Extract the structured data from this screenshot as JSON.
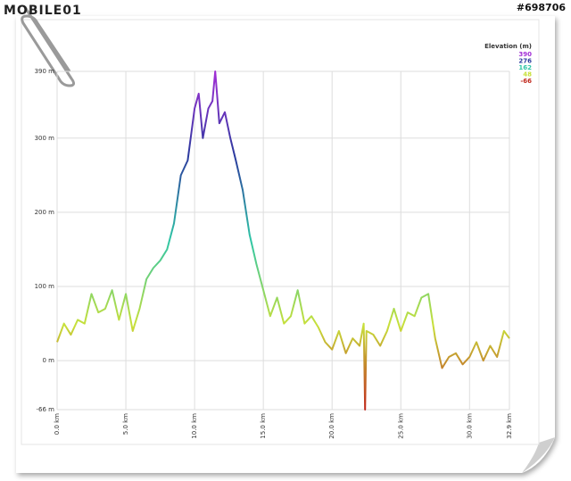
{
  "watermark": {
    "logo": "MOBILE01",
    "post_id": "#698706"
  },
  "chart_data": {
    "type": "line",
    "legend_title": "Elevation (m)",
    "color_scale": [
      {
        "value": 390,
        "color": "#a22fd6"
      },
      {
        "value": 276,
        "color": "#2b3a9e"
      },
      {
        "value": 162,
        "color": "#2fc6a6"
      },
      {
        "value": 48,
        "color": "#c8e03a"
      },
      {
        "value": -66,
        "color": "#c0281c"
      }
    ],
    "x": [
      0,
      0.5,
      1.0,
      1.5,
      2.0,
      2.5,
      3.0,
      3.5,
      4.0,
      4.5,
      5.0,
      5.5,
      6.0,
      6.5,
      7.0,
      7.5,
      8.0,
      8.5,
      9.0,
      9.5,
      10.0,
      10.3,
      10.6,
      11.0,
      11.3,
      11.5,
      11.8,
      12.2,
      12.6,
      13.0,
      13.5,
      14.0,
      14.5,
      15.0,
      15.5,
      16.0,
      16.5,
      17.0,
      17.5,
      18.0,
      18.5,
      19.0,
      19.5,
      20.0,
      20.5,
      21.0,
      21.5,
      22.0,
      22.3,
      22.4,
      22.5,
      23.0,
      23.5,
      24.0,
      24.5,
      25.0,
      25.5,
      26.0,
      26.5,
      27.0,
      27.5,
      28.0,
      28.5,
      29.0,
      29.5,
      30.0,
      30.5,
      31.0,
      31.5,
      32.0,
      32.5,
      32.9
    ],
    "values": [
      25,
      50,
      35,
      55,
      50,
      90,
      65,
      70,
      95,
      55,
      90,
      40,
      70,
      110,
      125,
      135,
      150,
      185,
      250,
      270,
      340,
      360,
      300,
      340,
      350,
      390,
      320,
      335,
      300,
      270,
      230,
      170,
      130,
      95,
      60,
      85,
      50,
      60,
      95,
      50,
      60,
      45,
      25,
      15,
      40,
      10,
      30,
      20,
      50,
      -66,
      40,
      35,
      20,
      40,
      70,
      40,
      65,
      60,
      85,
      90,
      30,
      -10,
      5,
      10,
      -5,
      5,
      25,
      0,
      20,
      5,
      40,
      30
    ],
    "xlim": [
      0,
      32.9
    ],
    "xticks": [
      {
        "value": 0,
        "label": "0.0 km"
      },
      {
        "value": 5,
        "label": "5.0 km"
      },
      {
        "value": 10,
        "label": "10.0 km"
      },
      {
        "value": 15,
        "label": "15.0 km"
      },
      {
        "value": 20,
        "label": "20.0 km"
      },
      {
        "value": 25,
        "label": "25.0 km"
      },
      {
        "value": 30,
        "label": "30.0 km"
      },
      {
        "value": 32.9,
        "label": "32.9 km"
      }
    ],
    "ylim": [
      -66,
      390
    ],
    "yticks": [
      {
        "value": 390,
        "label": "390 m"
      },
      {
        "value": 300,
        "label": "300 m"
      },
      {
        "value": 200,
        "label": "200 m"
      },
      {
        "value": 100,
        "label": "100 m"
      },
      {
        "value": 0,
        "label": "0 m"
      },
      {
        "value": -66,
        "label": "-66 m"
      }
    ],
    "grid": true
  }
}
